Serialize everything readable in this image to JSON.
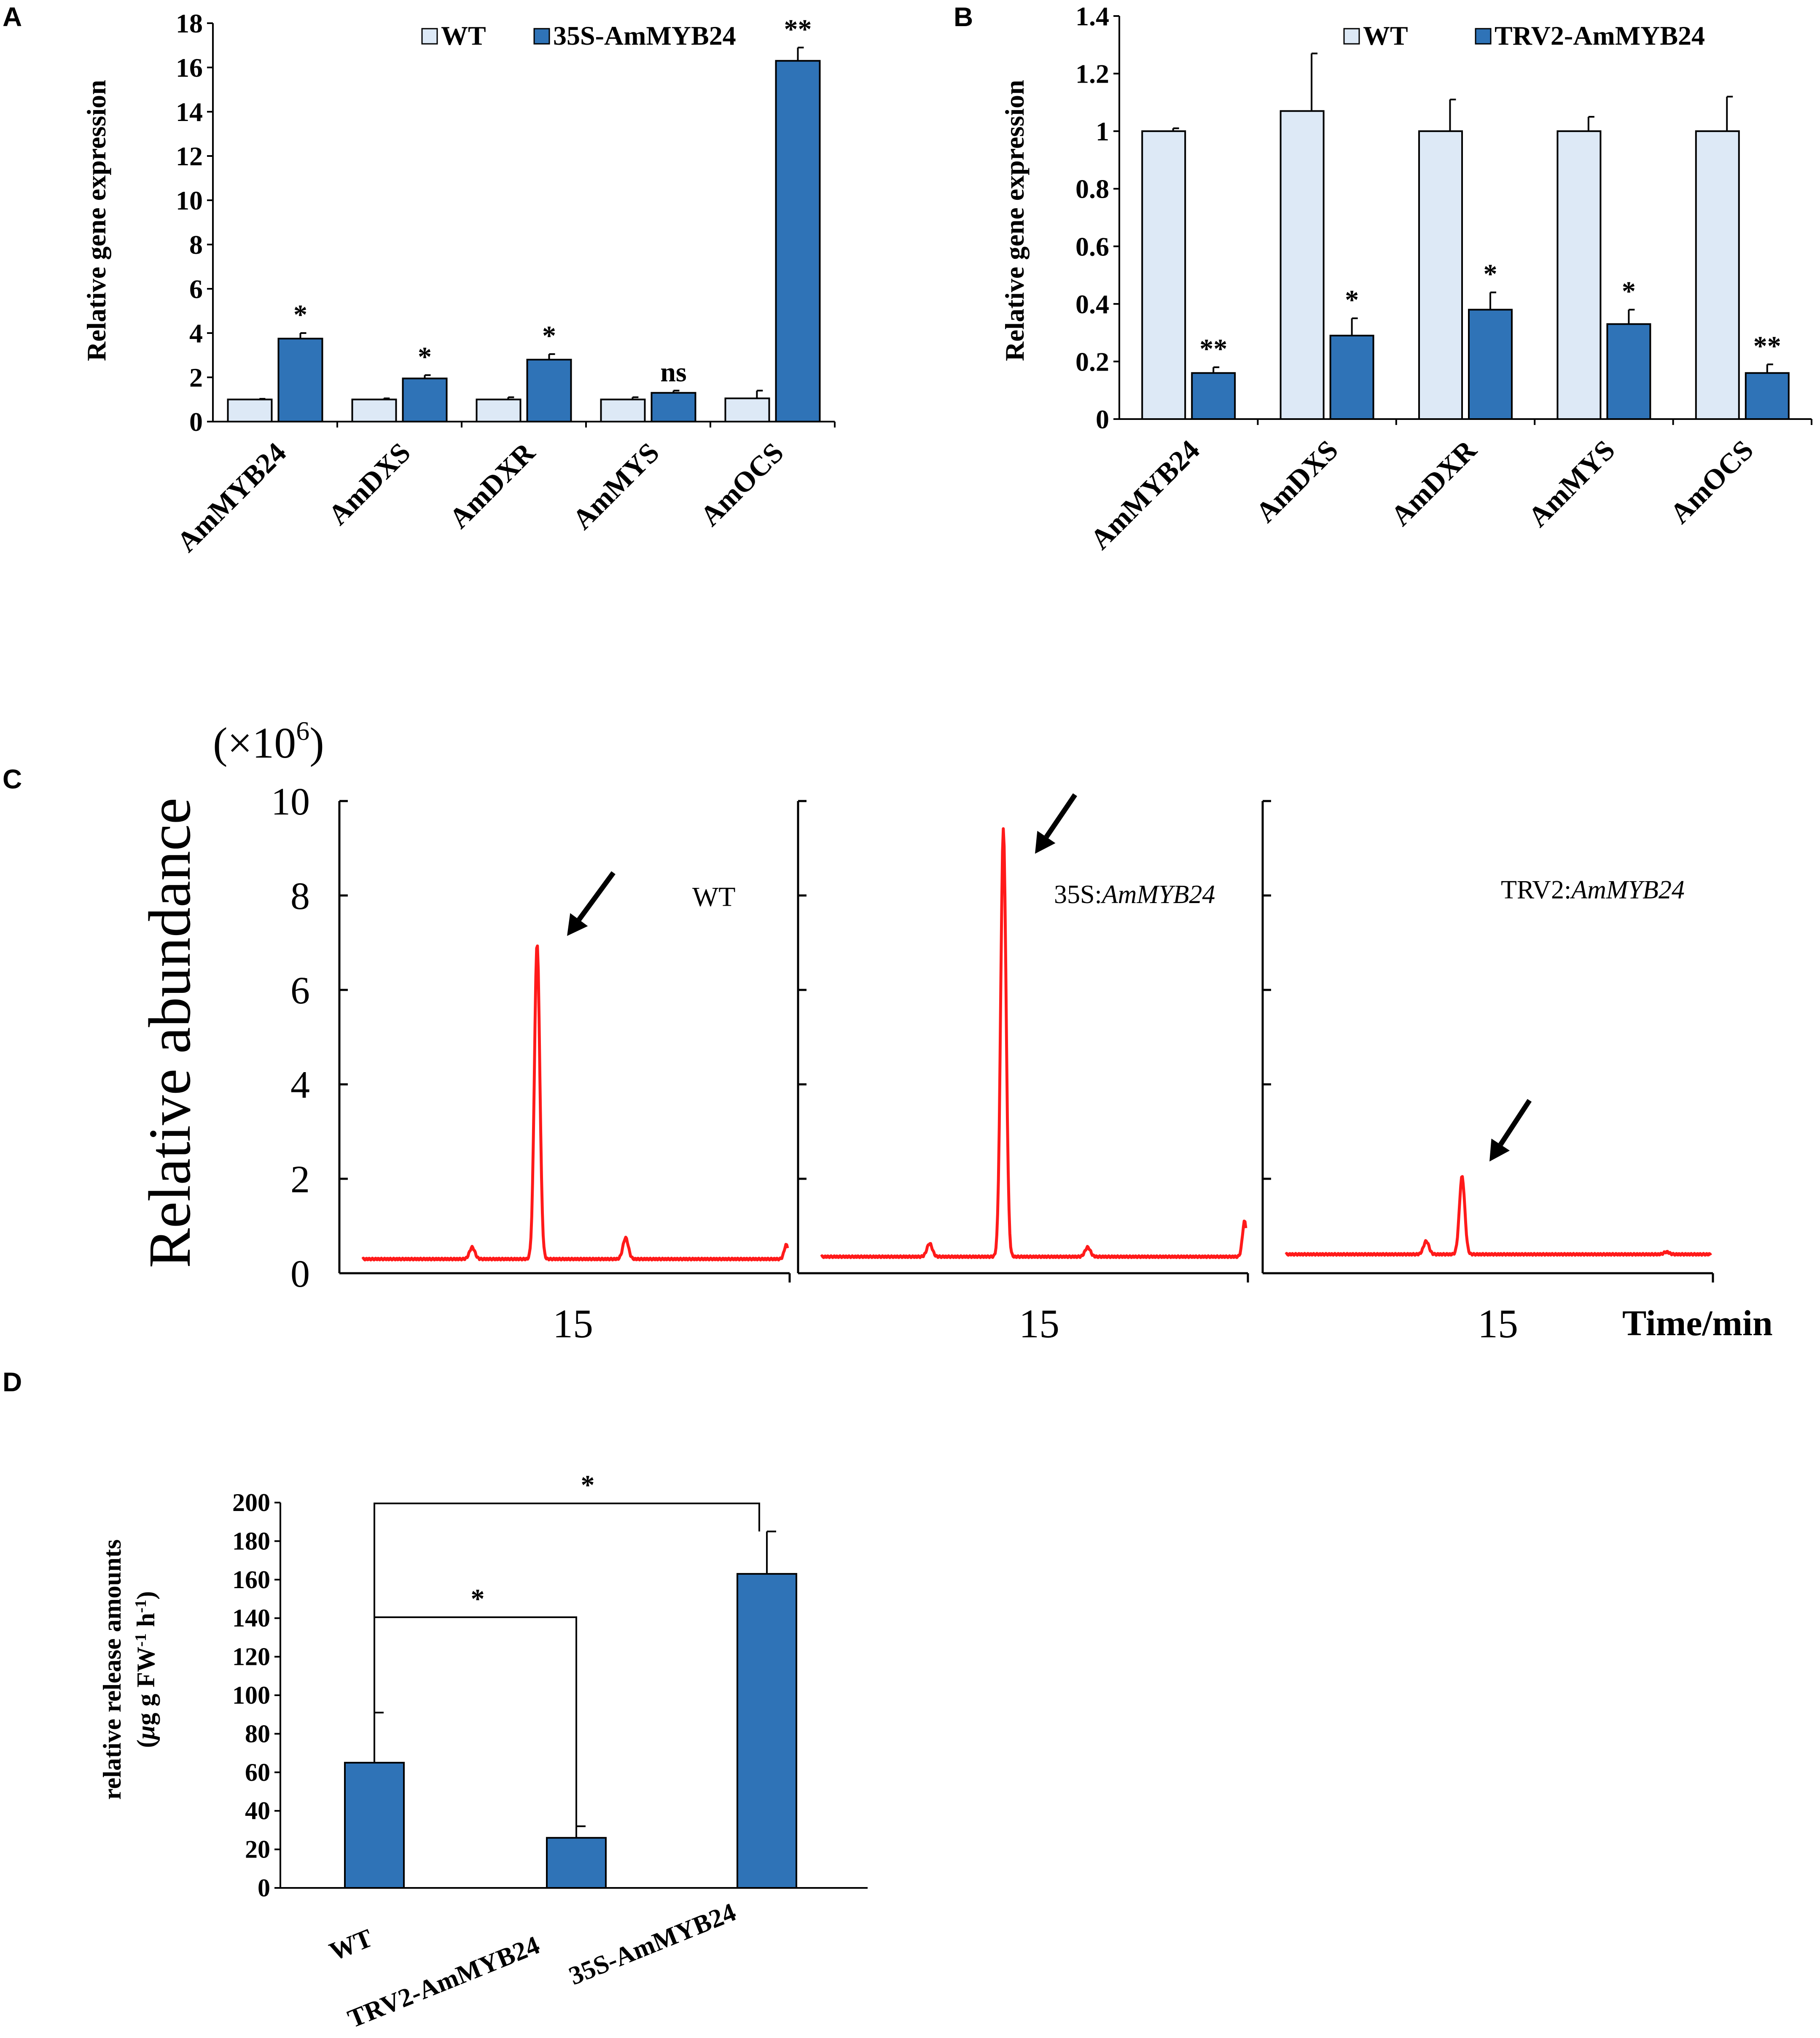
{
  "colors": {
    "wt_fill": "#dde9f6",
    "treatment_fill": "#2f73b7",
    "trace": "#ff1a1a",
    "axis": "#000000"
  },
  "chart_data": [
    {
      "id": "A",
      "panel_label": "A",
      "type": "bar",
      "ylabel": "Relative gene expression",
      "ylim": [
        0,
        18
      ],
      "yticks": [
        0,
        2,
        4,
        6,
        8,
        10,
        12,
        14,
        16,
        18
      ],
      "categories": [
        "AmMYB24",
        "AmDXS",
        "AmDXR",
        "AmMYS",
        "AmOCS"
      ],
      "series": [
        {
          "name": "WT",
          "values": [
            1.0,
            1.0,
            1.0,
            1.0,
            1.05
          ],
          "errors": [
            0.03,
            0.05,
            0.1,
            0.1,
            0.35
          ]
        },
        {
          "name": "35S-AmMYB24",
          "values": [
            3.75,
            1.95,
            2.8,
            1.3,
            16.3
          ],
          "errors": [
            0.25,
            0.15,
            0.25,
            0.1,
            0.6
          ]
        }
      ],
      "significance": [
        "*",
        "*",
        "*",
        "ns",
        "**"
      ],
      "legend": [
        "WT",
        "35S-AmMYB24"
      ]
    },
    {
      "id": "B",
      "panel_label": "B",
      "type": "bar",
      "ylabel": "Relative gene expression",
      "ylim": [
        0,
        1.4
      ],
      "yticks": [
        0,
        0.2,
        0.4,
        0.6,
        0.8,
        1,
        1.2,
        1.4
      ],
      "categories": [
        "AmMYB24",
        "AmDXS",
        "AmDXR",
        "AmMYS",
        "AmOCS"
      ],
      "series": [
        {
          "name": "WT",
          "values": [
            1.0,
            1.07,
            1.0,
            1.0,
            1.0
          ],
          "errors": [
            0.01,
            0.2,
            0.11,
            0.05,
            0.12
          ]
        },
        {
          "name": "TRV2-AmMYB24",
          "values": [
            0.16,
            0.29,
            0.38,
            0.33,
            0.16
          ],
          "errors": [
            0.02,
            0.06,
            0.06,
            0.05,
            0.03
          ]
        }
      ],
      "significance": [
        "**",
        "*",
        "*",
        "*",
        "**"
      ],
      "legend": [
        "WT",
        "TRV2-AmMYB24"
      ]
    },
    {
      "id": "C",
      "panel_label": "C",
      "type": "line",
      "scale_label": "(×10",
      "scale_exp": "6",
      "scale_close": ")",
      "ylabel": "Relative abundance",
      "xlabel": "Time/min",
      "ylim": [
        0,
        10
      ],
      "yticks": [
        0,
        2,
        4,
        6,
        8,
        10
      ],
      "xtick_label": "15",
      "series": [
        {
          "name": "WT",
          "label_prefix": "WT",
          "label_italic": "",
          "peak": 7.0,
          "baseline": 0.3
        },
        {
          "name": "35S:AmMYB24",
          "label_prefix": "35S:",
          "label_italic": "AmMYB24",
          "peak": 9.4,
          "baseline": 0.35
        },
        {
          "name": "TRV2:AmMYB24",
          "label_prefix": "TRV2:",
          "label_italic": "AmMYB24",
          "peak": 2.05,
          "baseline": 0.4
        }
      ]
    },
    {
      "id": "D",
      "panel_label": "D",
      "type": "bar",
      "ylabel_line1": "relative release amounts",
      "ylabel_line2_prefix": "(",
      "ylabel_mu": "μ",
      "ylabel_line2_rest": "g g FW",
      "ylabel_sup1": "-1",
      "ylabel_h": " h",
      "ylabel_sup2": "-1",
      "ylabel_close": ")",
      "ylim": [
        0,
        200
      ],
      "yticks": [
        0,
        20,
        40,
        60,
        80,
        100,
        120,
        140,
        160,
        180,
        200
      ],
      "categories": [
        "WT",
        "TRV2-AmMYB24",
        "35S-AmMYB24"
      ],
      "values": [
        65,
        26,
        163
      ],
      "errors": [
        26,
        6,
        22
      ],
      "comparisons": [
        {
          "from": 0,
          "to": 1,
          "label": "*"
        },
        {
          "from": 0,
          "to": 2,
          "label": "*"
        }
      ]
    }
  ]
}
